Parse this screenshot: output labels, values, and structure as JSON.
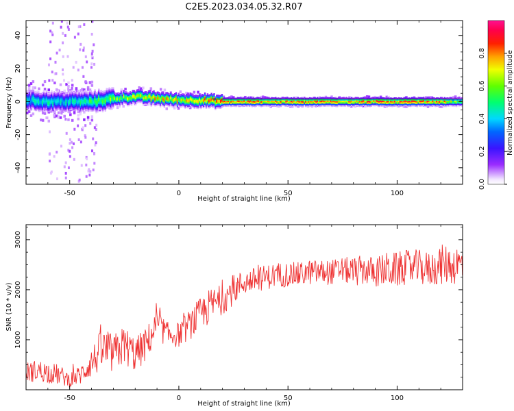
{
  "title": "C2E5.2023.034.05.32.R07",
  "chart_data": [
    {
      "type": "heatmap",
      "xlabel": "Height of straight line (km)",
      "ylabel": "Frequency (Hz)",
      "xlim": [
        -70,
        130
      ],
      "ylim": [
        -50,
        49
      ],
      "xticks": [
        "-50",
        "0",
        "50",
        "100"
      ],
      "xtick_values": [
        -50,
        0,
        50,
        100
      ],
      "yticks": [
        "-40",
        "-20",
        "0",
        "20",
        "40"
      ],
      "ytick_values": [
        -40,
        -20,
        0,
        20,
        40
      ],
      "colorbar": {
        "label": "Normalized spectral amplitude",
        "range": [
          0.0,
          1.0
        ],
        "ticks": [
          "0.0",
          "0.2",
          "0.4",
          "0.6",
          "0.8"
        ],
        "tick_values": [
          0.0,
          0.2,
          0.4,
          0.6,
          0.8
        ],
        "colormap": "gist_rainbow_r (white→purple→blue→cyan→green→yellow→orange→red→pink)"
      },
      "peak_line": {
        "description": "dominant spectral peak near 0 Hz across the height range",
        "height_km": [
          -70,
          -60,
          -50,
          -40,
          -30,
          -20,
          -10,
          0,
          10,
          20,
          40,
          60,
          80,
          100,
          120,
          130
        ],
        "frequency_hz": [
          1,
          0,
          0,
          0,
          2,
          3,
          2,
          1,
          1,
          0,
          0,
          0,
          0,
          0,
          0,
          0
        ],
        "amplitude": [
          0.5,
          0.55,
          0.5,
          0.6,
          0.7,
          0.75,
          0.85,
          0.8,
          0.85,
          0.9,
          0.9,
          0.9,
          0.92,
          0.92,
          0.9,
          0.6
        ]
      },
      "grid": false
    },
    {
      "type": "line",
      "xlabel": "Height of straight line (km)",
      "ylabel": "SNR (10 * v/v)",
      "xlim": [
        -70,
        130
      ],
      "ylim": [
        0,
        3300
      ],
      "xticks": [
        "-50",
        "0",
        "50",
        "100"
      ],
      "xtick_values": [
        -50,
        0,
        50,
        100
      ],
      "yticks": [
        "1000",
        "2000",
        "3000"
      ],
      "ytick_values": [
        1000,
        2000,
        3000
      ],
      "color": "#ee3030",
      "series": [
        {
          "x": [
            -70,
            -65,
            -60,
            -55,
            -50,
            -45,
            -40,
            -35,
            -30,
            -25,
            -20,
            -15,
            -10,
            -5,
            0,
            5,
            10,
            15,
            20,
            25,
            30,
            35,
            40,
            45,
            50,
            55,
            60,
            65,
            70,
            75,
            80,
            85,
            90,
            95,
            100,
            105,
            110,
            115,
            120,
            125,
            130
          ],
          "y": [
            350,
            380,
            350,
            300,
            200,
            300,
            550,
            800,
            700,
            900,
            700,
            900,
            1300,
            1100,
            1100,
            1300,
            1500,
            1700,
            1800,
            2000,
            2150,
            2200,
            2250,
            2300,
            2300,
            2300,
            2350,
            2350,
            2350,
            2400,
            2350,
            2400,
            2350,
            2400,
            2400,
            2450,
            2450,
            2400,
            2500,
            2500,
            2500
          ],
          "spread": [
            200,
            220,
            220,
            200,
            150,
            200,
            300,
            450,
            400,
            400,
            350,
            350,
            300,
            250,
            250,
            300,
            350,
            350,
            300,
            300,
            250,
            250,
            250,
            250,
            250,
            250,
            250,
            250,
            250,
            250,
            300,
            300,
            300,
            350,
            350,
            350,
            350,
            350,
            400,
            400,
            400
          ]
        }
      ],
      "grid": false
    }
  ]
}
